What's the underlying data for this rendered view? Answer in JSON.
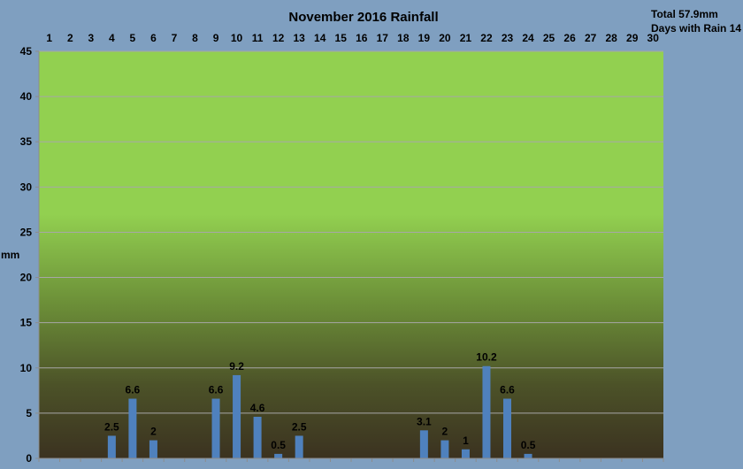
{
  "chart_data": {
    "type": "bar",
    "title": "November 2016 Rainfall",
    "total_label": "Total 57.9mm",
    "days_label": "Days with Rain 14",
    "ylabel": "mm",
    "xlabel": "",
    "ylim": [
      0,
      45
    ],
    "yticks": [
      0,
      5,
      10,
      15,
      20,
      25,
      30,
      35,
      40,
      45
    ],
    "grid": true,
    "x_axis_position": "top",
    "categories": [
      "1",
      "2",
      "3",
      "4",
      "5",
      "6",
      "7",
      "8",
      "9",
      "10",
      "11",
      "12",
      "13",
      "14",
      "15",
      "16",
      "17",
      "18",
      "19",
      "20",
      "21",
      "22",
      "23",
      "24",
      "25",
      "26",
      "27",
      "28",
      "29",
      "30"
    ],
    "values": [
      0,
      0,
      0,
      2.5,
      6.6,
      2,
      0,
      0,
      6.6,
      9.2,
      4.6,
      0.5,
      2.5,
      0,
      0,
      0,
      0,
      0,
      3.1,
      2,
      1,
      10.2,
      6.6,
      0.5,
      0,
      0,
      0,
      0,
      0,
      0
    ],
    "data_labels": [
      "",
      "",
      "",
      "2.5",
      "6.6",
      "2",
      "",
      "",
      "6.6",
      "9.2",
      "4.6",
      "0.5",
      "2.5",
      "",
      "",
      "",
      "",
      "",
      "3.1",
      "2",
      "1",
      "10.2",
      "6.6",
      "0.5",
      "",
      "",
      "",
      "",
      "",
      ""
    ],
    "colors": {
      "background": "#7f9fc0",
      "bar": "#4f81bd",
      "plot_top": "#92d050",
      "plot_bottom": "#3b3220",
      "grid": "#a7a7a7"
    }
  }
}
